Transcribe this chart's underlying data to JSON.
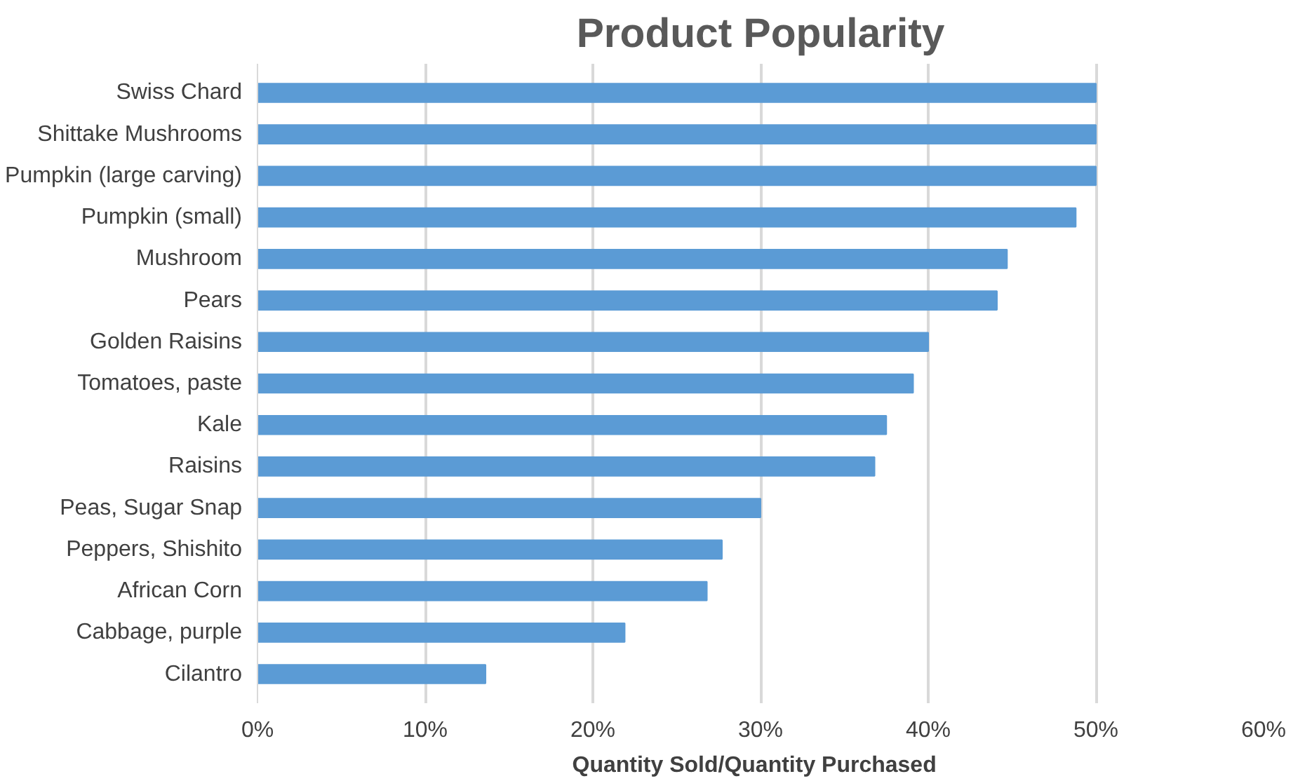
{
  "chart_data": {
    "type": "bar",
    "orientation": "horizontal",
    "title": "Product Popularity",
    "xlabel": "Quantity  Sold/Quantity  Purchased",
    "categories": [
      "Swiss Chard",
      "Shittake Mushrooms",
      "Pumpkin (large carving)",
      "Pumpkin (small)",
      "Mushroom",
      "Pears",
      "Golden Raisins",
      "Tomatoes, paste",
      "Kale",
      "Raisins",
      "Peas, Sugar Snap",
      "Peppers, Shishito",
      "African Corn",
      "Cabbage, purple",
      "Cilantro"
    ],
    "values": [
      50,
      50,
      50,
      48.8,
      44.7,
      44.1,
      40,
      39.1,
      37.5,
      36.8,
      30,
      27.7,
      26.8,
      21.9,
      13.6
    ],
    "color": "#5b9bd5",
    "xlim": [
      0,
      60
    ],
    "xticks": [
      {
        "value": 0,
        "label": "0%"
      },
      {
        "value": 10,
        "label": "10%"
      },
      {
        "value": 20,
        "label": "20%"
      },
      {
        "value": 30,
        "label": "30%"
      },
      {
        "value": 40,
        "label": "40%"
      },
      {
        "value": 50,
        "label": "50%"
      },
      {
        "value": 60,
        "label": "60%"
      }
    ],
    "grid": "x"
  }
}
